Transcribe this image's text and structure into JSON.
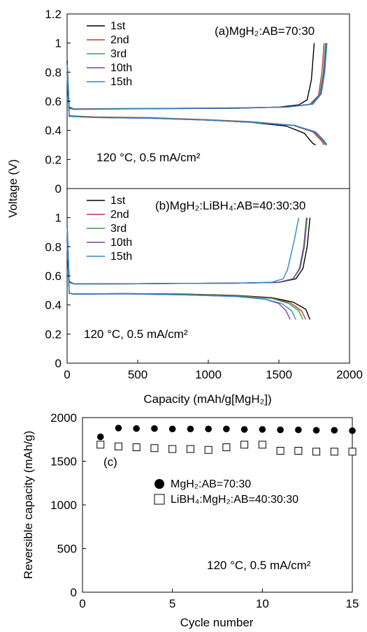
{
  "chart_data": [
    {
      "type": "line",
      "annotation": "(a)MgH₂:AB=70:30",
      "condition": "120 °C, 0.5 mA/cm²",
      "xlim": [
        0,
        2000
      ],
      "ylim": [
        0,
        1.2
      ],
      "yticks": [
        "0",
        "0.2",
        "0.4",
        "0.6",
        "0.8",
        "1",
        "1.2"
      ],
      "series": [
        {
          "name": "1st",
          "color": "#000000",
          "charge": [
            [
              0,
              0.88
            ],
            [
              15,
              0.56
            ],
            [
              50,
              0.546
            ],
            [
              400,
              0.548
            ],
            [
              800,
              0.55
            ],
            [
              1200,
              0.552
            ],
            [
              1500,
              0.56
            ],
            [
              1640,
              0.575
            ],
            [
              1700,
              0.61
            ],
            [
              1730,
              0.75
            ],
            [
              1750,
              1.0
            ]
          ],
          "discharge": [
            [
              0,
              0.8
            ],
            [
              15,
              0.5
            ],
            [
              200,
              0.49
            ],
            [
              600,
              0.485
            ],
            [
              1000,
              0.47
            ],
            [
              1300,
              0.455
            ],
            [
              1550,
              0.43
            ],
            [
              1680,
              0.38
            ],
            [
              1740,
              0.31
            ],
            [
              1760,
              0.3
            ]
          ]
        },
        {
          "name": "2nd",
          "color": "#c0392b",
          "charge": [
            [
              0,
              0.86
            ],
            [
              15,
              0.555
            ],
            [
              50,
              0.548
            ],
            [
              400,
              0.55
            ],
            [
              800,
              0.552
            ],
            [
              1200,
              0.555
            ],
            [
              1550,
              0.56
            ],
            [
              1720,
              0.58
            ],
            [
              1780,
              0.64
            ],
            [
              1805,
              0.8
            ],
            [
              1820,
              1.0
            ]
          ],
          "discharge": [
            [
              0,
              0.8
            ],
            [
              15,
              0.5
            ],
            [
              200,
              0.492
            ],
            [
              600,
              0.487
            ],
            [
              1000,
              0.473
            ],
            [
              1300,
              0.46
            ],
            [
              1600,
              0.435
            ],
            [
              1740,
              0.39
            ],
            [
              1800,
              0.33
            ],
            [
              1820,
              0.3
            ]
          ]
        },
        {
          "name": "3rd",
          "color": "#3a9b45",
          "charge": [
            [
              0,
              0.86
            ],
            [
              15,
              0.552
            ],
            [
              50,
              0.546
            ],
            [
              400,
              0.549
            ],
            [
              800,
              0.551
            ],
            [
              1200,
              0.554
            ],
            [
              1560,
              0.56
            ],
            [
              1730,
              0.58
            ],
            [
              1790,
              0.65
            ],
            [
              1815,
              0.8
            ],
            [
              1830,
              1.0
            ]
          ],
          "discharge": [
            [
              0,
              0.8
            ],
            [
              15,
              0.498
            ],
            [
              200,
              0.49
            ],
            [
              600,
              0.485
            ],
            [
              1000,
              0.471
            ],
            [
              1300,
              0.458
            ],
            [
              1610,
              0.435
            ],
            [
              1750,
              0.39
            ],
            [
              1810,
              0.33
            ],
            [
              1830,
              0.3
            ]
          ]
        },
        {
          "name": "10th",
          "color": "#7b3fa0",
          "charge": [
            [
              0,
              0.86
            ],
            [
              15,
              0.55
            ],
            [
              50,
              0.544
            ],
            [
              400,
              0.547
            ],
            [
              800,
              0.55
            ],
            [
              1200,
              0.553
            ],
            [
              1560,
              0.56
            ],
            [
              1735,
              0.58
            ],
            [
              1795,
              0.65
            ],
            [
              1820,
              0.8
            ],
            [
              1835,
              1.0
            ]
          ],
          "discharge": [
            [
              0,
              0.8
            ],
            [
              15,
              0.496
            ],
            [
              200,
              0.488
            ],
            [
              600,
              0.483
            ],
            [
              1000,
              0.47
            ],
            [
              1300,
              0.456
            ],
            [
              1610,
              0.433
            ],
            [
              1755,
              0.39
            ],
            [
              1815,
              0.33
            ],
            [
              1835,
              0.3
            ]
          ]
        },
        {
          "name": "15th",
          "color": "#2e86c9",
          "charge": [
            [
              0,
              0.86
            ],
            [
              15,
              0.55
            ],
            [
              50,
              0.545
            ],
            [
              400,
              0.548
            ],
            [
              800,
              0.551
            ],
            [
              1200,
              0.554
            ],
            [
              1560,
              0.56
            ],
            [
              1740,
              0.58
            ],
            [
              1800,
              0.65
            ],
            [
              1825,
              0.8
            ],
            [
              1840,
              1.0
            ]
          ],
          "discharge": [
            [
              0,
              0.8
            ],
            [
              15,
              0.496
            ],
            [
              200,
              0.488
            ],
            [
              600,
              0.483
            ],
            [
              1000,
              0.47
            ],
            [
              1300,
              0.456
            ],
            [
              1615,
              0.433
            ],
            [
              1760,
              0.39
            ],
            [
              1820,
              0.33
            ],
            [
              1840,
              0.3
            ]
          ]
        }
      ]
    },
    {
      "type": "line",
      "annotation": "(b)MgH₂:LiBH₄:AB=40:30:30",
      "condition": "120 °C, 0.5 mA/cm²",
      "xlim": [
        0,
        2000
      ],
      "ylim": [
        0,
        1.2
      ],
      "yticks": [
        "0",
        "0.2",
        "0.4",
        "0.6",
        "0.8",
        "1"
      ],
      "series": [
        {
          "name": "1st",
          "color": "#000000",
          "charge": [
            [
              0,
              0.95
            ],
            [
              15,
              0.56
            ],
            [
              50,
              0.545
            ],
            [
              400,
              0.545
            ],
            [
              800,
              0.548
            ],
            [
              1200,
              0.55
            ],
            [
              1500,
              0.555
            ],
            [
              1620,
              0.58
            ],
            [
              1670,
              0.65
            ],
            [
              1700,
              0.8
            ],
            [
              1720,
              1.0
            ]
          ],
          "discharge": [
            [
              0,
              0.85
            ],
            [
              15,
              0.48
            ],
            [
              50,
              0.475
            ],
            [
              400,
              0.478
            ],
            [
              800,
              0.475
            ],
            [
              1200,
              0.465
            ],
            [
              1450,
              0.45
            ],
            [
              1600,
              0.42
            ],
            [
              1690,
              0.37
            ],
            [
              1720,
              0.3
            ]
          ]
        },
        {
          "name": "2nd",
          "color": "#c0392b",
          "charge": [
            [
              0,
              0.95
            ],
            [
              15,
              0.555
            ],
            [
              50,
              0.545
            ],
            [
              400,
              0.546
            ],
            [
              800,
              0.548
            ],
            [
              1200,
              0.55
            ],
            [
              1500,
              0.556
            ],
            [
              1600,
              0.58
            ],
            [
              1650,
              0.65
            ],
            [
              1680,
              0.8
            ],
            [
              1700,
              1.0
            ]
          ],
          "discharge": [
            [
              0,
              0.85
            ],
            [
              15,
              0.48
            ],
            [
              50,
              0.475
            ],
            [
              400,
              0.478
            ],
            [
              800,
              0.474
            ],
            [
              1200,
              0.463
            ],
            [
              1450,
              0.447
            ],
            [
              1580,
              0.415
            ],
            [
              1660,
              0.36
            ],
            [
              1690,
              0.3
            ]
          ]
        },
        {
          "name": "3rd",
          "color": "#3a9b45",
          "charge": [
            [
              0,
              0.95
            ],
            [
              15,
              0.555
            ],
            [
              50,
              0.545
            ],
            [
              400,
              0.546
            ],
            [
              800,
              0.548
            ],
            [
              1200,
              0.55
            ],
            [
              1500,
              0.556
            ],
            [
              1600,
              0.58
            ],
            [
              1650,
              0.65
            ],
            [
              1680,
              0.8
            ],
            [
              1700,
              1.0
            ]
          ],
          "discharge": [
            [
              0,
              0.85
            ],
            [
              15,
              0.48
            ],
            [
              50,
              0.475
            ],
            [
              400,
              0.477
            ],
            [
              800,
              0.473
            ],
            [
              1200,
              0.462
            ],
            [
              1450,
              0.445
            ],
            [
              1570,
              0.41
            ],
            [
              1640,
              0.36
            ],
            [
              1670,
              0.3
            ]
          ]
        },
        {
          "name": "10th",
          "color": "#7b3fa0",
          "charge": [
            [
              0,
              0.95
            ],
            [
              15,
              0.555
            ],
            [
              50,
              0.545
            ],
            [
              400,
              0.546
            ],
            [
              800,
              0.548
            ],
            [
              1200,
              0.55
            ],
            [
              1500,
              0.556
            ],
            [
              1600,
              0.58
            ],
            [
              1645,
              0.65
            ],
            [
              1675,
              0.8
            ],
            [
              1695,
              1.0
            ]
          ],
          "discharge": [
            [
              0,
              0.85
            ],
            [
              15,
              0.48
            ],
            [
              50,
              0.474
            ],
            [
              400,
              0.476
            ],
            [
              800,
              0.47
            ],
            [
              1200,
              0.458
            ],
            [
              1400,
              0.44
            ],
            [
              1500,
              0.41
            ],
            [
              1550,
              0.36
            ],
            [
              1580,
              0.3
            ]
          ]
        },
        {
          "name": "15th",
          "color": "#2e86c9",
          "charge": [
            [
              0,
              0.95
            ],
            [
              15,
              0.555
            ],
            [
              50,
              0.545
            ],
            [
              400,
              0.546
            ],
            [
              800,
              0.548
            ],
            [
              1200,
              0.55
            ],
            [
              1450,
              0.556
            ],
            [
              1530,
              0.58
            ],
            [
              1560,
              0.64
            ],
            [
              1575,
              0.7
            ],
            [
              1610,
              0.85
            ],
            [
              1640,
              1.0
            ]
          ],
          "discharge": [
            [
              0,
              0.85
            ],
            [
              15,
              0.48
            ],
            [
              50,
              0.474
            ],
            [
              400,
              0.476
            ],
            [
              800,
              0.47
            ],
            [
              1200,
              0.458
            ],
            [
              1400,
              0.44
            ],
            [
              1520,
              0.41
            ],
            [
              1590,
              0.36
            ],
            [
              1620,
              0.3
            ]
          ]
        }
      ]
    },
    {
      "type": "scatter",
      "annotation": "(c)",
      "condition": "120 °C, 0.5 mA/cm²",
      "xlabel": "Cycle number",
      "ylabel": "Reversible capacity (mAh/g)",
      "xlim": [
        0,
        15
      ],
      "ylim": [
        0,
        2000
      ],
      "xticks": [
        "0",
        "5",
        "10",
        "15"
      ],
      "yticks": [
        "0",
        "500",
        "1000",
        "1500",
        "2000"
      ],
      "series": [
        {
          "name": "MgH₂:AB=70:30",
          "marker": "filled-circle",
          "x": [
            1,
            2,
            3,
            4,
            5,
            6,
            7,
            8,
            9,
            10,
            11,
            12,
            13,
            14,
            15
          ],
          "y": [
            1780,
            1880,
            1875,
            1875,
            1870,
            1870,
            1870,
            1870,
            1865,
            1865,
            1860,
            1860,
            1855,
            1855,
            1850
          ]
        },
        {
          "name": "LiBH₄:MgH₂:AB=40:30:30",
          "marker": "open-square",
          "x": [
            1,
            2,
            3,
            4,
            5,
            6,
            7,
            8,
            9,
            10,
            11,
            12,
            13,
            14,
            15
          ],
          "y": [
            1690,
            1670,
            1660,
            1650,
            1640,
            1640,
            1630,
            1660,
            1690,
            1690,
            1620,
            1620,
            1610,
            1610,
            1610
          ]
        }
      ]
    }
  ],
  "shared": {
    "ab_ylabel": "Voltage (V)",
    "ab_xlabel": "Capacity (mAh/g[MgH₂])",
    "ab_xticks": [
      "0",
      "500",
      "1000",
      "1500",
      "2000"
    ]
  }
}
